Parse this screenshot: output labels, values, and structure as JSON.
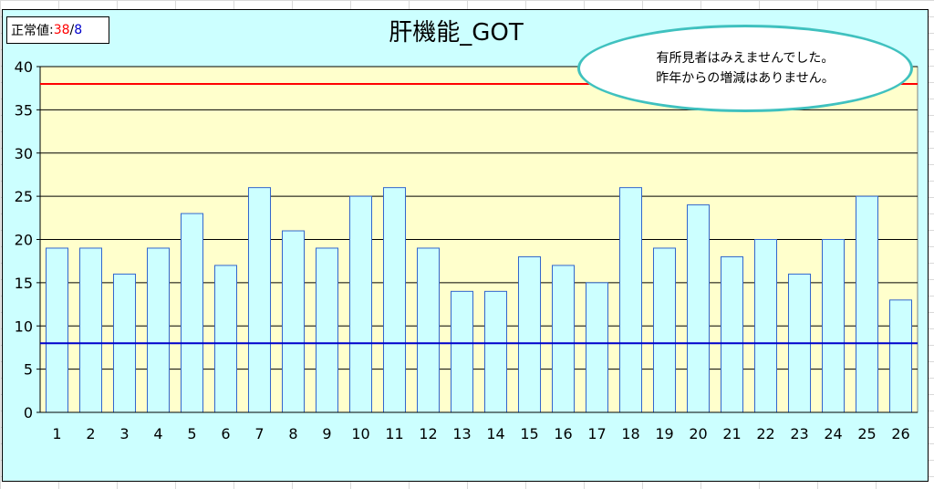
{
  "norm": {
    "label": "正常値",
    "colon": ":",
    "upper": "38",
    "separator": "/",
    "lower": "8"
  },
  "callout": {
    "line1": "有所見者はみえませんでした。",
    "line2": "昨年からの増減はありません。"
  },
  "colors": {
    "bar_fill": "#ccffff",
    "bar_stroke": "#3366cc",
    "plot_bg": "#ffffcc",
    "chart_bg": "#ccffff",
    "upper_line": "#ff0000",
    "lower_line": "#0000cc",
    "callout_border": "#3fc1bf"
  },
  "chart_data": {
    "type": "bar",
    "title": "肝機能_GOT",
    "xlabel": "",
    "ylabel": "",
    "categories": [
      "1",
      "2",
      "3",
      "4",
      "5",
      "6",
      "7",
      "8",
      "9",
      "10",
      "11",
      "12",
      "13",
      "14",
      "15",
      "16",
      "17",
      "18",
      "19",
      "20",
      "21",
      "22",
      "23",
      "24",
      "25",
      "26"
    ],
    "series": [
      {
        "values": [
          19,
          19,
          16,
          19,
          23,
          17,
          26,
          21,
          19,
          25,
          26,
          19,
          14,
          14,
          18,
          17,
          15,
          26,
          19,
          24,
          18,
          20,
          16,
          20,
          25,
          13
        ]
      }
    ],
    "ylim": [
      0,
      40
    ],
    "yticks": [
      "0",
      "5",
      "10",
      "15",
      "20",
      "25",
      "30",
      "35",
      "40"
    ],
    "reference_lines": [
      {
        "value": 38,
        "color": "#ff0000"
      },
      {
        "value": 8,
        "color": "#0000cc"
      }
    ],
    "grid": true
  }
}
